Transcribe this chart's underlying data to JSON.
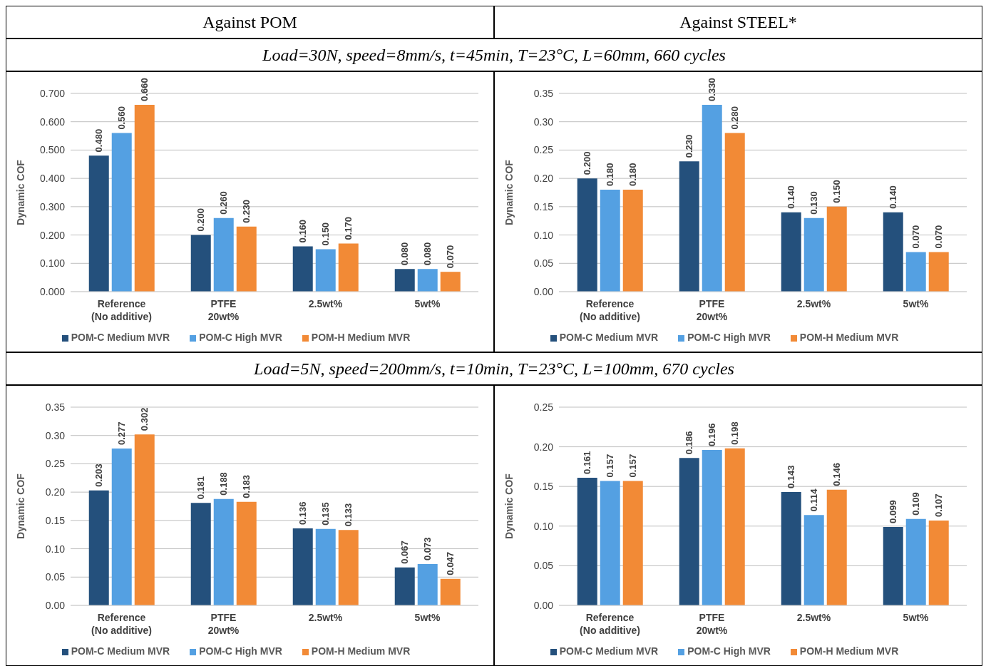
{
  "chart_data": [
    {
      "type": "bar",
      "title": "Against POM",
      "subtitle": "Load=30N, speed=8mm/s, t=45min, T=23°C, L=60mm, 660 cycles",
      "ylabel": "Dynamic COF",
      "categories": [
        "Reference\n(No additive)",
        "PTFE\n20wt%",
        "2.5wt%",
        "5wt%"
      ],
      "series": [
        {
          "name": "POM-C Medium MVR",
          "color": "#24507c",
          "values": [
            0.48,
            0.2,
            0.16,
            0.08
          ],
          "value_labels": [
            "0.480",
            "0.200",
            "0.160",
            "0.080"
          ]
        },
        {
          "name": "POM-C High MVR",
          "color": "#54a0e2",
          "values": [
            0.56,
            0.26,
            0.15,
            0.08
          ],
          "value_labels": [
            "0.560",
            "0.260",
            "0.150",
            "0.080"
          ]
        },
        {
          "name": "POM-H Medium MVR",
          "color": "#f28a36",
          "values": [
            0.66,
            0.23,
            0.17,
            0.07
          ],
          "value_labels": [
            "0.660",
            "0.230",
            "0.170",
            "0.070"
          ]
        }
      ],
      "ylim": [
        0,
        0.7
      ],
      "yticks": [
        {
          "value": 0,
          "label": "0.000"
        },
        {
          "value": 0.1,
          "label": "0.100"
        },
        {
          "value": 0.2,
          "label": "0.200"
        },
        {
          "value": 0.3,
          "label": "0.300"
        },
        {
          "value": 0.4,
          "label": "0.400"
        },
        {
          "value": 0.5,
          "label": "0.500"
        },
        {
          "value": 0.6,
          "label": "0.600"
        },
        {
          "value": 0.7,
          "label": "0.700"
        }
      ],
      "grid": "y",
      "legend": "bottom"
    },
    {
      "type": "bar",
      "title": "Against STEEL*",
      "ylabel": "Dynamic COF",
      "categories": [
        "Reference\n(No additive)",
        "PTFE\n20wt%",
        "2.5wt%",
        "5wt%"
      ],
      "series": [
        {
          "name": "POM-C Medium MVR",
          "color": "#24507c",
          "values": [
            0.2,
            0.23,
            0.14,
            0.14
          ],
          "value_labels": [
            "0.200",
            "0.230",
            "0.140",
            "0.140"
          ]
        },
        {
          "name": "POM-C High MVR",
          "color": "#54a0e2",
          "values": [
            0.18,
            0.33,
            0.13,
            0.07
          ],
          "value_labels": [
            "0.180",
            "0.330",
            "0.130",
            "0.070"
          ]
        },
        {
          "name": "POM-H Medium MVR",
          "color": "#f28a36",
          "values": [
            0.18,
            0.28,
            0.15,
            0.07
          ],
          "value_labels": [
            "0.180",
            "0.280",
            "0.150",
            "0.070"
          ]
        }
      ],
      "ylim": [
        0,
        0.35
      ],
      "yticks": [
        {
          "value": 0,
          "label": "0.00"
        },
        {
          "value": 0.05,
          "label": "0.05"
        },
        {
          "value": 0.1,
          "label": "0.10"
        },
        {
          "value": 0.15,
          "label": "0.15"
        },
        {
          "value": 0.2,
          "label": "0.20"
        },
        {
          "value": 0.25,
          "label": "0.25"
        },
        {
          "value": 0.3,
          "label": "0.30"
        },
        {
          "value": 0.35,
          "label": "0.35"
        }
      ],
      "grid": "y",
      "legend": "bottom"
    },
    {
      "type": "bar",
      "subtitle": "Load=5N, speed=200mm/s, t=10min, T=23°C, L=100mm, 670 cycles",
      "ylabel": "Dynamic COF",
      "categories": [
        "Reference\n(No additive)",
        "PTFE\n20wt%",
        "2.5wt%",
        "5wt%"
      ],
      "series": [
        {
          "name": "POM-C Medium MVR",
          "color": "#24507c",
          "values": [
            0.203,
            0.181,
            0.136,
            0.067
          ]
        },
        {
          "name": "POM-C High MVR",
          "color": "#54a0e2",
          "values": [
            0.277,
            0.188,
            0.135,
            0.073
          ]
        },
        {
          "name": "POM-H Medium MVR",
          "color": "#f28a36",
          "values": [
            0.302,
            0.183,
            0.133,
            0.047
          ]
        }
      ],
      "data_labels": true,
      "ylim": [
        0,
        0.35
      ],
      "yticks": [
        {
          "value": 0,
          "label": "0.00"
        },
        {
          "value": 0.05,
          "label": "0.05"
        },
        {
          "value": 0.1,
          "label": "0.10"
        },
        {
          "value": 0.15,
          "label": "0.15"
        },
        {
          "value": 0.2,
          "label": "0.20"
        },
        {
          "value": 0.25,
          "label": "0.25"
        },
        {
          "value": 0.3,
          "label": "0.30"
        },
        {
          "value": 0.35,
          "label": "0.35"
        }
      ],
      "grid": "y",
      "legend": "bottom"
    },
    {
      "type": "bar",
      "ylabel": "Dynamic COF",
      "categories": [
        "Reference\n(No additive)",
        "PTFE\n20wt%",
        "2.5wt%",
        "5wt%"
      ],
      "series": [
        {
          "name": "POM-C Medium MVR",
          "color": "#24507c",
          "values": [
            0.161,
            0.186,
            0.143,
            0.099
          ]
        },
        {
          "name": "POM-C High MVR",
          "color": "#54a0e2",
          "values": [
            0.157,
            0.196,
            0.114,
            0.109
          ]
        },
        {
          "name": "POM-H Medium MVR",
          "color": "#f28a36",
          "values": [
            0.157,
            0.198,
            0.146,
            0.107
          ]
        }
      ],
      "data_labels": true,
      "ylim": [
        0,
        0.25
      ],
      "yticks": [
        {
          "value": 0,
          "label": "0.00"
        },
        {
          "value": 0.05,
          "label": "0.05"
        },
        {
          "value": 0.1,
          "label": "0.10"
        },
        {
          "value": 0.15,
          "label": "0.15"
        },
        {
          "value": 0.2,
          "label": "0.20"
        },
        {
          "value": 0.25,
          "label": "0.25"
        }
      ],
      "grid": "y",
      "legend": "bottom"
    }
  ]
}
